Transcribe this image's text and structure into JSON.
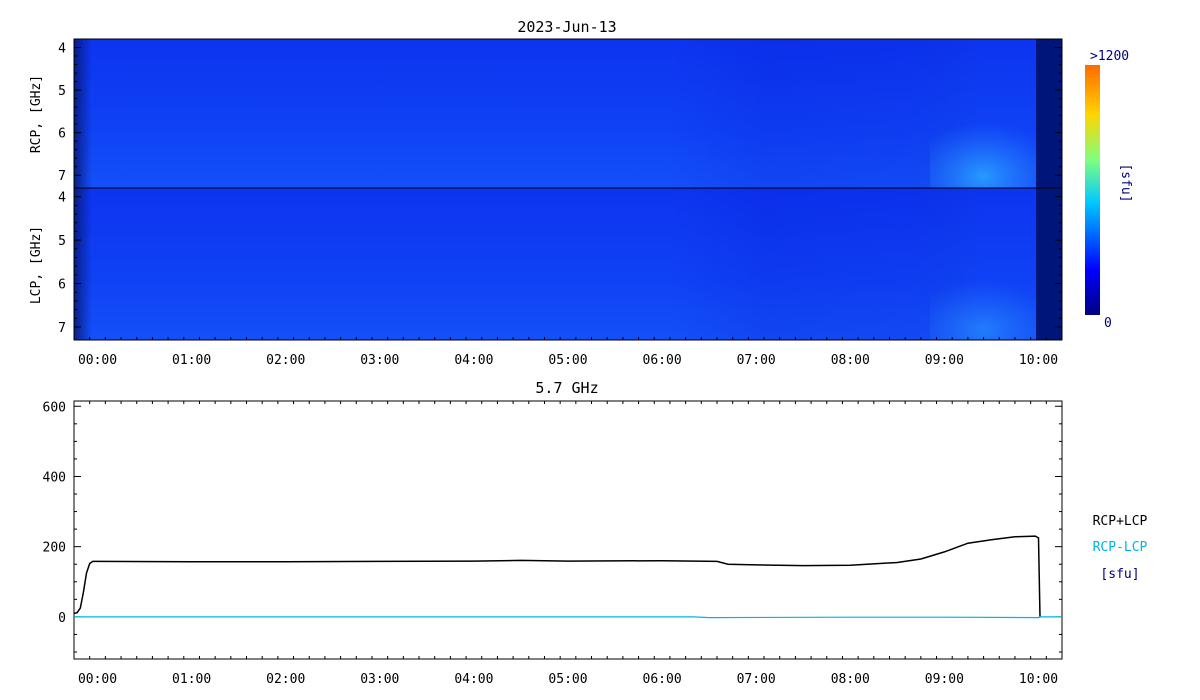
{
  "title": "2023-Jun-13",
  "time_ticks": [
    "00:00",
    "01:00",
    "02:00",
    "03:00",
    "04:00",
    "05:00",
    "06:00",
    "07:00",
    "08:00",
    "09:00",
    "10:00"
  ],
  "spectrogram": {
    "rcp_ylabel": "RCP, [GHz]",
    "lcp_ylabel": "LCP, [GHz]",
    "freq_ticks": [
      "4",
      "5",
      "6",
      "7"
    ],
    "colorbar": {
      "max_label": ">1200",
      "min_label": "0",
      "unit_label": "[sfu]"
    }
  },
  "chart_data": [
    {
      "type": "heatmap",
      "title": "2023-Jun-13",
      "panels": [
        "RCP, [GHz]",
        "LCP, [GHz]"
      ],
      "x_range": [
        "23:45",
        "10:15"
      ],
      "y_range_ghz": [
        3.8,
        7.3
      ],
      "y_ticks": [
        4,
        5,
        6,
        7
      ],
      "color_range_sfu": [
        0,
        1200
      ],
      "colormap": [
        "#00007f",
        "#0000ff",
        "#00c8ff",
        "#7fff7f",
        "#ffd500",
        "#ff6a00"
      ]
    },
    {
      "type": "line",
      "title": "5.7 GHz",
      "xlabel": "",
      "ylabel": "",
      "x_range": [
        "23:45",
        "10:15"
      ],
      "ylim": [
        -120,
        615
      ],
      "y_ticks": [
        0,
        200,
        400,
        600
      ],
      "legend": {
        "position": "right",
        "entries": [
          "RCP+LCP",
          "RCP-LCP"
        ],
        "unit": "[sfu]"
      },
      "series": [
        {
          "name": "RCP+LCP",
          "color": "#000000",
          "points": [
            [
              "23:45",
              10
            ],
            [
              "23:47",
              12
            ],
            [
              "23:49",
              25
            ],
            [
              "23:51",
              70
            ],
            [
              "23:53",
              125
            ],
            [
              "23:55",
              152
            ],
            [
              "23:57",
              158
            ],
            [
              "00:00",
              158
            ],
            [
              "01:00",
              157
            ],
            [
              "02:00",
              157
            ],
            [
              "03:00",
              158
            ],
            [
              "04:00",
              159
            ],
            [
              "04:30",
              161
            ],
            [
              "05:00",
              159
            ],
            [
              "06:00",
              160
            ],
            [
              "06:35",
              158
            ],
            [
              "06:42",
              150
            ],
            [
              "07:00",
              148
            ],
            [
              "07:30",
              146
            ],
            [
              "08:00",
              147
            ],
            [
              "08:30",
              155
            ],
            [
              "08:45",
              165
            ],
            [
              "09:00",
              185
            ],
            [
              "09:15",
              210
            ],
            [
              "09:30",
              220
            ],
            [
              "09:45",
              228
            ],
            [
              "09:58",
              230
            ],
            [
              "10:00",
              225
            ],
            [
              "10:01",
              0
            ]
          ]
        },
        {
          "name": "RCP-LCP",
          "color": "#00b4e6",
          "points": [
            [
              "23:45",
              0
            ],
            [
              "02:00",
              0
            ],
            [
              "04:00",
              0
            ],
            [
              "06:20",
              0
            ],
            [
              "06:30",
              -2
            ],
            [
              "08:00",
              -1
            ],
            [
              "09:00",
              -1
            ],
            [
              "10:00",
              -2
            ],
            [
              "10:01",
              0
            ],
            [
              "10:15",
              0
            ]
          ]
        }
      ]
    }
  ],
  "line_panel": {
    "title": "5.7 GHz",
    "y_ticks": [
      "0",
      "200",
      "400",
      "600"
    ]
  },
  "legend": {
    "entries": [
      "RCP+LCP",
      "RCP-LCP"
    ],
    "unit": "[sfu]",
    "colors": [
      "#000000",
      "#00b4e6",
      "#00007f"
    ]
  }
}
